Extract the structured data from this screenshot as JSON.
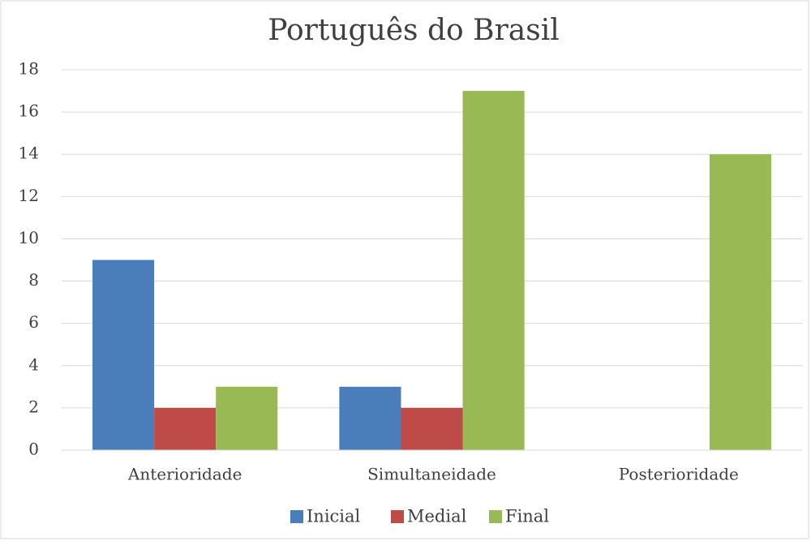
{
  "chart_data": {
    "type": "bar",
    "title": "Português do Brasil",
    "categories": [
      "Anterioridade",
      "Simultaneidade",
      "Posterioridade"
    ],
    "series": [
      {
        "name": "Inicial",
        "color": "#4a7ebb",
        "values": [
          9,
          3,
          0
        ]
      },
      {
        "name": "Medial",
        "color": "#be4b48",
        "values": [
          2,
          2,
          0
        ]
      },
      {
        "name": "Final",
        "color": "#98b954",
        "values": [
          3,
          17,
          14
        ]
      }
    ],
    "ylim": [
      0,
      18
    ],
    "yticks": [
      0,
      2,
      4,
      6,
      8,
      10,
      12,
      14,
      16,
      18
    ],
    "grid": true,
    "legend": "bottom"
  }
}
